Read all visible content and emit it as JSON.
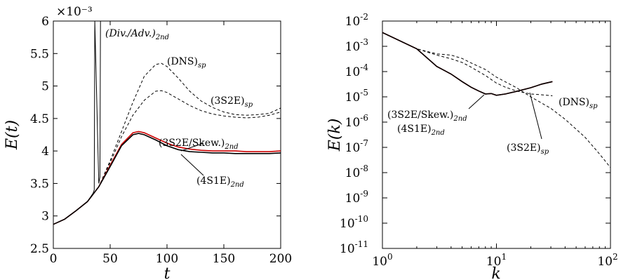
{
  "chart_data": [
    {
      "type": "line",
      "xlabel": "t",
      "ylabel": "E(t)",
      "xlim": [
        0,
        200
      ],
      "ylim": [
        2.5,
        6
      ],
      "x_ticks": [
        "0",
        "50",
        "100",
        "150",
        "200"
      ],
      "y_ticks": [
        "2.5",
        "3",
        "3.5",
        "4",
        "4.5",
        "5",
        "5.5",
        "6"
      ],
      "y_multiplier": "×10⁻³",
      "series": [
        {
          "name": "(DNS)sp",
          "style": "dashed",
          "color": "#000000",
          "x": [
            0,
            10,
            20,
            30,
            40,
            50,
            60,
            70,
            80,
            90,
            95,
            100,
            110,
            120,
            130,
            140,
            150,
            160,
            170,
            180,
            190,
            200
          ],
          "y": [
            2.87,
            2.95,
            3.08,
            3.22,
            3.45,
            3.85,
            4.3,
            4.75,
            5.15,
            5.33,
            5.35,
            5.3,
            5.12,
            4.92,
            4.77,
            4.67,
            4.6,
            4.56,
            4.55,
            4.56,
            4.58,
            4.66
          ]
        },
        {
          "name": "(3S2E)sp",
          "style": "dashed",
          "color": "#000000",
          "x": [
            0,
            10,
            20,
            30,
            40,
            50,
            60,
            70,
            80,
            90,
            95,
            100,
            110,
            120,
            130,
            140,
            150,
            160,
            170,
            180,
            190,
            200
          ],
          "y": [
            2.87,
            2.95,
            3.08,
            3.22,
            3.45,
            3.82,
            4.22,
            4.55,
            4.78,
            4.92,
            4.93,
            4.9,
            4.8,
            4.7,
            4.62,
            4.57,
            4.54,
            4.52,
            4.51,
            4.52,
            4.55,
            4.6
          ]
        },
        {
          "name": "(3S2E/Skew.)2nd",
          "style": "solid",
          "color": "#cc0000",
          "x": [
            0,
            10,
            20,
            30,
            40,
            50,
            60,
            70,
            75,
            80,
            90,
            100,
            110,
            120,
            130,
            140,
            150,
            160,
            170,
            180,
            190,
            200
          ],
          "y": [
            2.87,
            2.95,
            3.08,
            3.22,
            3.45,
            3.78,
            4.1,
            4.28,
            4.3,
            4.28,
            4.2,
            4.12,
            4.06,
            4.03,
            4.01,
            4.0,
            4.0,
            4.0,
            3.99,
            3.99,
            3.99,
            4.0
          ]
        },
        {
          "name": "(4S1E)2nd",
          "style": "solid",
          "color": "#000000",
          "x": [
            0,
            10,
            20,
            30,
            40,
            50,
            60,
            70,
            75,
            80,
            90,
            100,
            110,
            120,
            130,
            140,
            150,
            160,
            170,
            180,
            190,
            200
          ],
          "y": [
            2.87,
            2.95,
            3.08,
            3.22,
            3.45,
            3.76,
            4.08,
            4.25,
            4.27,
            4.25,
            4.17,
            4.08,
            4.02,
            3.99,
            3.98,
            3.97,
            3.97,
            3.96,
            3.96,
            3.96,
            3.96,
            3.97
          ]
        },
        {
          "name": "(Div./Adv.)2nd",
          "style": "solid",
          "color": "#000000",
          "x": [
            0,
            10,
            20,
            30,
            35,
            36,
            36.5,
            40,
            41,
            41.5
          ],
          "y": [
            2.87,
            2.95,
            3.08,
            3.22,
            3.35,
            3.4,
            6,
            3.5,
            3.6,
            6
          ]
        }
      ],
      "annotations": [
        {
          "text": "(Div./Adv.)",
          "sub": "2nd",
          "italic": true
        },
        {
          "text": "(DNS)",
          "sub": "sp",
          "italic": false
        },
        {
          "text": "(3S2E)",
          "sub": "sp",
          "italic": false
        },
        {
          "text": "(3S2E/Skew.)",
          "sub": "2nd",
          "italic": false
        },
        {
          "text": "(4S1E)",
          "sub": "2nd",
          "italic": false
        }
      ]
    },
    {
      "type": "line",
      "xlabel": "k",
      "ylabel": "E(k)",
      "x_scale": "log",
      "y_scale": "log",
      "xlim": [
        1,
        100
      ],
      "ylim": [
        1e-11,
        0.01
      ],
      "x_ticks": [
        {
          "base": "10",
          "exp": "0"
        },
        {
          "base": "10",
          "exp": "1"
        },
        {
          "base": "10",
          "exp": "2"
        }
      ],
      "y_ticks": [
        {
          "base": "10",
          "exp": "-11"
        },
        {
          "base": "10",
          "exp": "-10"
        },
        {
          "base": "10",
          "exp": "-9"
        },
        {
          "base": "10",
          "exp": "-8"
        },
        {
          "base": "10",
          "exp": "-7"
        },
        {
          "base": "10",
          "exp": "-6"
        },
        {
          "base": "10",
          "exp": "-5"
        },
        {
          "base": "10",
          "exp": "-4"
        },
        {
          "base": "10",
          "exp": "-3"
        },
        {
          "base": "10",
          "exp": "-2"
        }
      ],
      "series": [
        {
          "name": "(DNS)sp",
          "style": "dashed",
          "color": "#000000",
          "x": [
            1,
            2,
            3,
            4,
            5,
            6,
            8,
            10,
            15,
            20,
            30,
            40,
            60,
            80,
            100
          ],
          "y": [
            0.0035,
            0.0008,
            0.0005,
            0.00045,
            0.00033,
            0.00022,
            0.00012,
            6e-05,
            2.3e-05,
            1e-05,
            3.5e-06,
            1.3e-06,
            2.5e-07,
            5.5e-08,
            1.6e-08
          ]
        },
        {
          "name": "(3S2E)sp",
          "style": "dashed",
          "color": "#000000",
          "x": [
            1,
            2,
            3,
            4,
            5,
            6,
            8,
            10,
            12,
            15,
            20,
            25,
            31
          ],
          "y": [
            0.0035,
            0.0008,
            0.00045,
            0.00032,
            0.00023,
            0.00015,
            7e-05,
            3.5e-05,
            2.4e-05,
            1.7e-05,
            1.3e-05,
            1.2e-05,
            1.1e-05
          ]
        },
        {
          "name": "(3S2E/Skew.)2nd",
          "style": "solid",
          "color": "#cc0000",
          "x": [
            1,
            2,
            3,
            4,
            5,
            6,
            7,
            8,
            9,
            10,
            12,
            15,
            20,
            25,
            31
          ],
          "y": [
            0.0035,
            0.0008,
            0.00016,
            8e-05,
            4e-05,
            2.4e-05,
            1.7e-05,
            1.3e-05,
            1.35e-05,
            1.15e-05,
            1.3e-05,
            1.65e-05,
            2.3e-05,
            3.2e-05,
            4e-05
          ]
        },
        {
          "name": "(4S1E)2nd",
          "style": "solid",
          "color": "#000000",
          "x": [
            1,
            2,
            3,
            4,
            5,
            6,
            7,
            8,
            9,
            10,
            12,
            15,
            20,
            25,
            31
          ],
          "y": [
            0.0035,
            0.0008,
            0.00016,
            8e-05,
            4e-05,
            2.4e-05,
            1.7e-05,
            1.3e-05,
            1.35e-05,
            1.15e-05,
            1.3e-05,
            1.65e-05,
            2.3e-05,
            3.2e-05,
            4e-05
          ]
        }
      ],
      "annotations": [
        {
          "text": "(3S2E/Skew.)",
          "sub": "2nd",
          "italic": false
        },
        {
          "text": "(4S1E)",
          "sub": "2nd",
          "italic": false
        },
        {
          "text": "(3S2E)",
          "sub": "sp",
          "italic": false
        },
        {
          "text": "(DNS)",
          "sub": "sp",
          "italic": false
        }
      ]
    }
  ]
}
